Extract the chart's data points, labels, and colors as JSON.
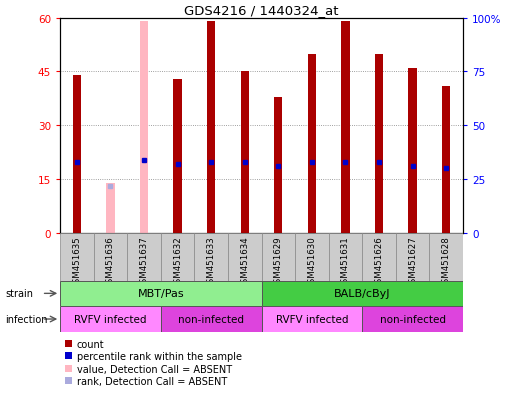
{
  "title": "GDS4216 / 1440324_at",
  "samples": [
    "GSM451635",
    "GSM451636",
    "GSM451637",
    "GSM451632",
    "GSM451633",
    "GSM451634",
    "GSM451629",
    "GSM451630",
    "GSM451631",
    "GSM451626",
    "GSM451627",
    "GSM451628"
  ],
  "count_values": [
    44,
    0,
    0,
    43,
    59,
    45,
    38,
    50,
    59,
    50,
    46,
    41
  ],
  "count_absent": [
    0,
    14,
    59,
    0,
    0,
    0,
    0,
    0,
    0,
    0,
    0,
    0
  ],
  "percentile_values": [
    33,
    0,
    34,
    32,
    33,
    33,
    31,
    33,
    33,
    33,
    31,
    30
  ],
  "percentile_absent": [
    0,
    22,
    0,
    0,
    0,
    0,
    0,
    0,
    0,
    0,
    0,
    0
  ],
  "strain_groups": [
    {
      "label": "MBT/Pas",
      "start": 0,
      "end": 6,
      "color": "#90EE90"
    },
    {
      "label": "BALB/cByJ",
      "start": 6,
      "end": 12,
      "color": "#44CC44"
    }
  ],
  "infection_groups": [
    {
      "label": "RVFV infected",
      "start": 0,
      "end": 3,
      "color": "#FF88FF"
    },
    {
      "label": "non-infected",
      "start": 3,
      "end": 6,
      "color": "#DD44DD"
    },
    {
      "label": "RVFV infected",
      "start": 6,
      "end": 9,
      "color": "#FF88FF"
    },
    {
      "label": "non-infected",
      "start": 9,
      "end": 12,
      "color": "#DD44DD"
    }
  ],
  "ylim_left": [
    0,
    60
  ],
  "ylim_right": [
    0,
    100
  ],
  "yticks_left": [
    0,
    15,
    30,
    45,
    60
  ],
  "yticks_right": [
    0,
    25,
    50,
    75,
    100
  ],
  "bar_color": "#AA0000",
  "bar_absent_color": "#FFB6C1",
  "dot_color": "#0000CC",
  "dot_absent_color": "#AAAADD",
  "bar_width": 0.25,
  "legend_items": [
    {
      "label": "count",
      "color": "#AA0000"
    },
    {
      "label": "percentile rank within the sample",
      "color": "#0000CC"
    },
    {
      "label": "value, Detection Call = ABSENT",
      "color": "#FFB6C1"
    },
    {
      "label": "rank, Detection Call = ABSENT",
      "color": "#AAAADD"
    }
  ]
}
